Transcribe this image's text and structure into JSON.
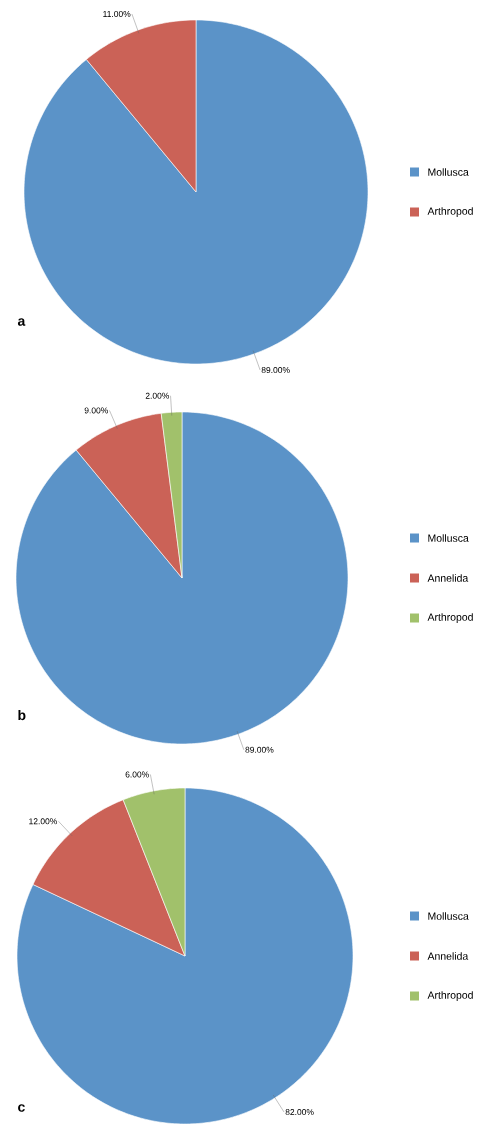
{
  "chart_data": [
    {
      "type": "pie",
      "categories": [
        "Mollusca",
        "Arthropod"
      ],
      "values": [
        89,
        11
      ],
      "colors": [
        "#5b93c8",
        "#cb6257"
      ],
      "value_labels": [
        "89.00%",
        "11.00%"
      ],
      "legend": "right",
      "annotations": [
        "a"
      ]
    },
    {
      "type": "pie",
      "categories": [
        "Mollusca",
        "Annelida",
        "Arthropod"
      ],
      "values": [
        89,
        9,
        2
      ],
      "colors": [
        "#5b93c8",
        "#cb6257",
        "#a1c16b"
      ],
      "value_labels": [
        "89.00%",
        "9.00%",
        "2.00%"
      ],
      "legend": "right",
      "annotations": [
        "b"
      ]
    },
    {
      "type": "pie",
      "categories": [
        "Mollusca",
        "Annelida",
        "Arthropod"
      ],
      "values": [
        82,
        12,
        6
      ],
      "colors": [
        "#5b93c8",
        "#cb6257",
        "#a1c16b"
      ],
      "value_labels": [
        "82.00%",
        "12.00%",
        "6.00%"
      ],
      "legend": "right",
      "annotations": [
        "c"
      ]
    }
  ]
}
